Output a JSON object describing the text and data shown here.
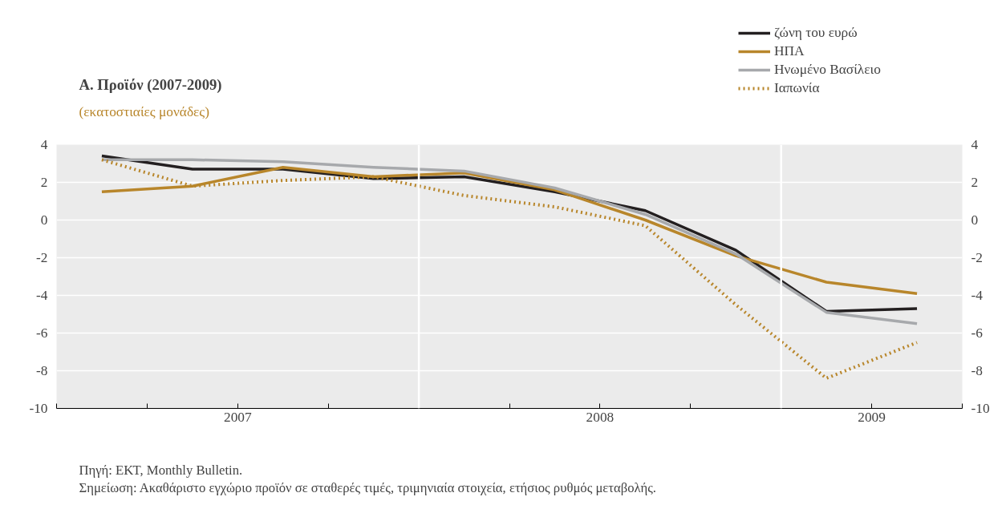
{
  "chart_data": {
    "type": "line",
    "title": "Α. Προϊόν (2007-2009)",
    "subtitle": "(εκατοστιαίες μονάδες)",
    "x": [
      2007.125,
      2007.375,
      2007.625,
      2007.875,
      2008.125,
      2008.375,
      2008.625,
      2008.875,
      2009.125,
      2009.375
    ],
    "series": [
      {
        "name": "ζώνη του ευρώ",
        "color": "#231f20",
        "line_style": "solid",
        "values": [
          3.4,
          2.7,
          2.7,
          2.2,
          2.3,
          1.5,
          0.5,
          -1.6,
          -4.85,
          -4.7
        ]
      },
      {
        "name": "ΗΠΑ",
        "color": "#b8862b",
        "line_style": "solid",
        "values": [
          1.5,
          1.8,
          2.8,
          2.3,
          2.5,
          1.6,
          0.0,
          -1.9,
          -3.3,
          -3.9
        ]
      },
      {
        "name": "Ηνωμένο Βασίλειο",
        "color": "#a7a9ac",
        "line_style": "solid",
        "values": [
          3.2,
          3.2,
          3.1,
          2.8,
          2.6,
          1.7,
          0.3,
          -1.8,
          -4.9,
          -5.5
        ]
      },
      {
        "name": "Ιαπωνία",
        "color": "#b8862b",
        "line_style": "dotted",
        "values": [
          3.2,
          1.8,
          2.1,
          2.3,
          1.3,
          0.7,
          -0.3,
          -4.5,
          -8.4,
          -6.5
        ]
      }
    ],
    "xlim": [
      2007,
      2009.5
    ],
    "xticks": [
      {
        "value": 2007,
        "label": null
      },
      {
        "value": 2007.25,
        "label": null
      },
      {
        "value": 2007.5,
        "label": "2007"
      },
      {
        "value": 2007.75,
        "label": null
      },
      {
        "value": 2008,
        "label": null
      },
      {
        "value": 2008.25,
        "label": null
      },
      {
        "value": 2008.5,
        "label": "2008"
      },
      {
        "value": 2008.75,
        "label": null
      },
      {
        "value": 2009,
        "label": null
      },
      {
        "value": 2009.25,
        "label": "2009"
      },
      {
        "value": 2009.5,
        "label": null
      }
    ],
    "ylim": [
      -10,
      4
    ],
    "yticks": [
      -10,
      -8,
      -6,
      -4,
      -2,
      0,
      2,
      4
    ],
    "y2lim": [
      -10,
      4
    ],
    "y2ticks": [
      -10,
      -8,
      -6,
      -4,
      -2,
      0,
      2,
      4
    ],
    "ref_lines": [
      {
        "axis": "x",
        "value": 2008,
        "color": "#ffffff"
      },
      {
        "axis": "x",
        "value": 2009,
        "color": "#ffffff"
      }
    ],
    "grid": "y",
    "legend": "top right",
    "annotations": [
      "Πηγή: ΕΚΤ, Monthly Bulletin.",
      "Σημείωση: Ακαθάριστο εγχώριο προϊόν σε σταθερές τιμές, τριμηνιαία στοιχεία, ετήσιος ρυθμός μεταβολής."
    ]
  }
}
